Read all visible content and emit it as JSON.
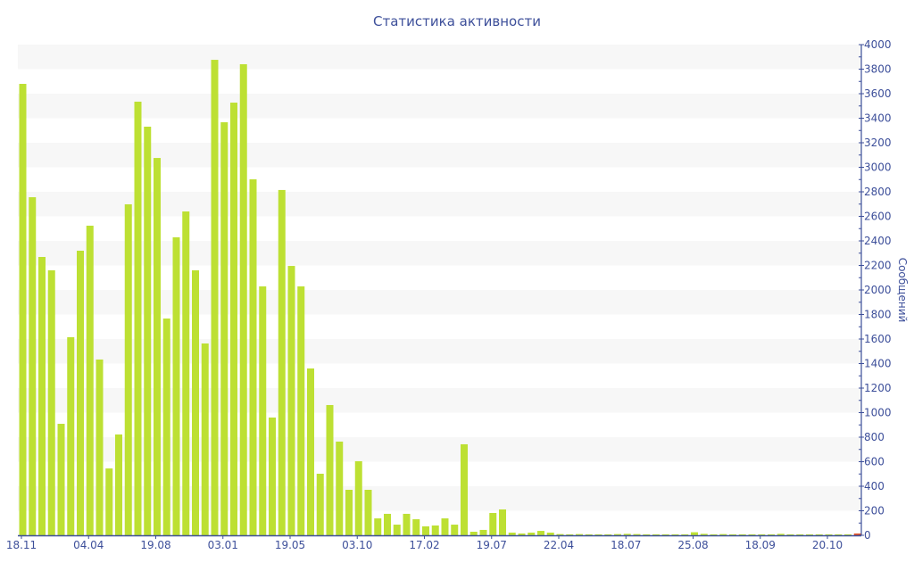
{
  "chart_data": {
    "type": "bar",
    "title": "Статистика активности",
    "xlabel": "",
    "ylabel": "Сообщений",
    "ylim": [
      0,
      4000
    ],
    "y_ticks": [
      0,
      200,
      400,
      600,
      800,
      1000,
      1200,
      1400,
      1600,
      1800,
      2000,
      2200,
      2400,
      2600,
      2800,
      3000,
      3200,
      3400,
      3600,
      3800,
      4000
    ],
    "x_tick_labels": [
      "18.11",
      "04.04",
      "19.08",
      "03.01",
      "19.05",
      "03.10",
      "17.02",
      "19.07",
      "22.04",
      "18.07",
      "25.08",
      "18.09",
      "20.10"
    ],
    "x_tick_every": 7,
    "y_axis_side": "right",
    "grid": "alternating horizontal bands",
    "colors": {
      "bar": "#bde033",
      "last_bar": "#e0552b",
      "axis": "#3d4f9a",
      "band": "#f7f7f7"
    },
    "values": [
      3680,
      2756,
      2269,
      2160,
      909,
      1615,
      2320,
      2524,
      1433,
      545,
      822,
      2698,
      3535,
      3331,
      3076,
      1767,
      2429,
      2640,
      2160,
      1564,
      3876,
      3367,
      3527,
      3840,
      2902,
      2029,
      960,
      2815,
      2196,
      2029,
      1360,
      502,
      1062,
      764,
      371,
      604,
      371,
      138,
      175,
      87,
      175,
      131,
      73,
      80,
      138,
      87,
      742,
      29,
      44,
      182,
      211,
      22,
      15,
      22,
      36,
      22,
      10,
      8,
      10,
      8,
      8,
      8,
      10,
      12,
      10,
      8,
      8,
      8,
      8,
      8,
      25,
      12,
      8,
      10,
      8,
      8,
      8,
      8,
      8,
      12,
      8,
      8,
      8,
      8,
      8,
      8,
      8,
      15
    ]
  }
}
